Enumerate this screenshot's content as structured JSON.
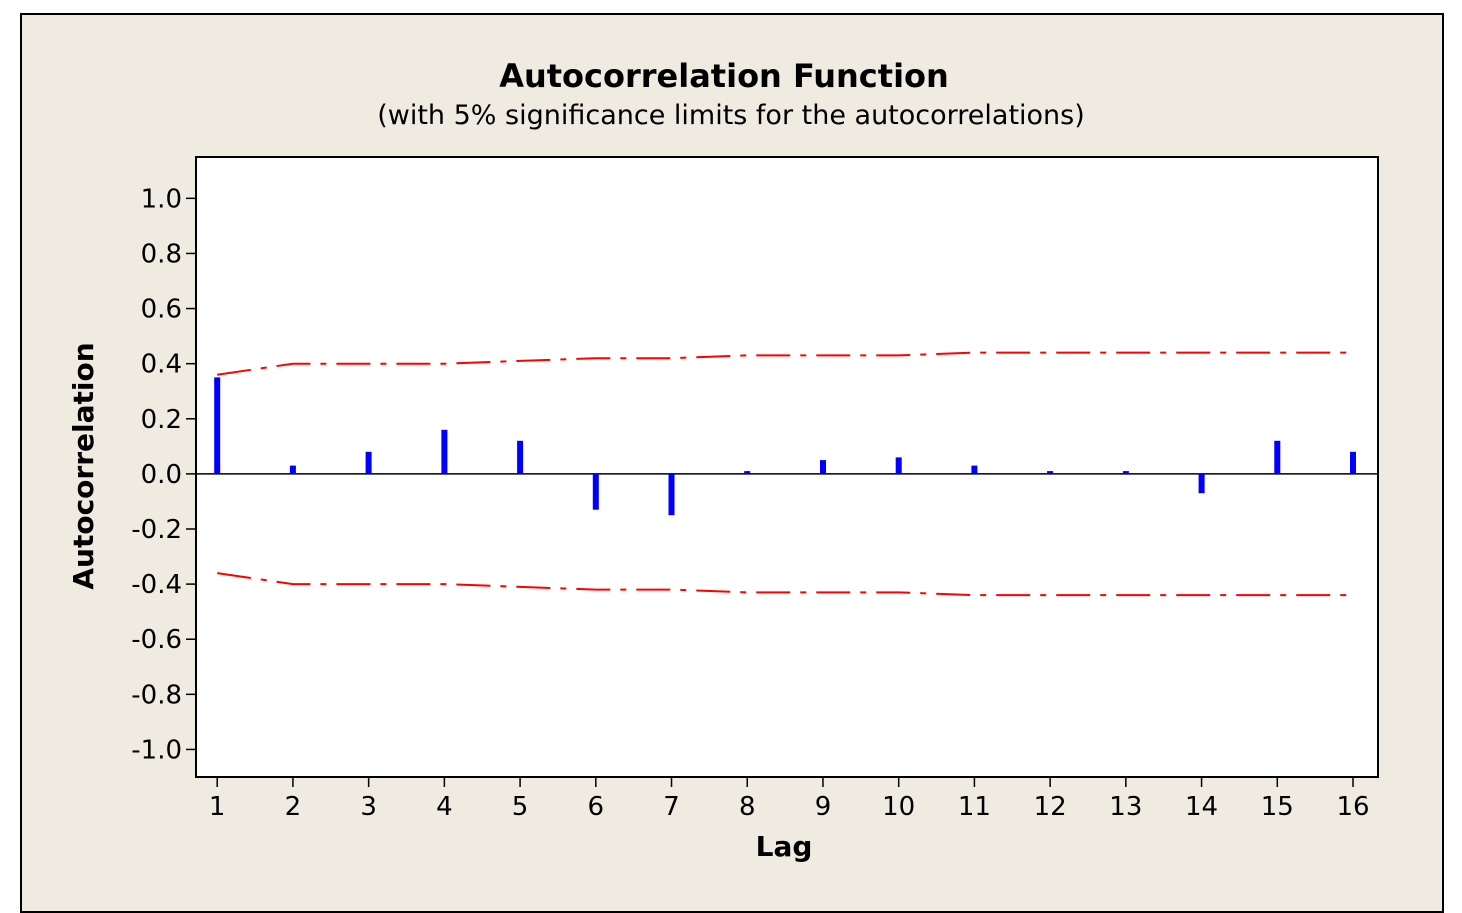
{
  "chart_data": {
    "type": "bar",
    "title": "Autocorrelation Function",
    "subtitle": "(with 5% significance limits for the autocorrelations)",
    "xlabel": "Lag",
    "ylabel": "Autocorrelation",
    "x": [
      1,
      2,
      3,
      4,
      5,
      6,
      7,
      8,
      9,
      10,
      11,
      12,
      13,
      14,
      15,
      16
    ],
    "x_tick_labels": [
      "1",
      "2",
      "3",
      "4",
      "5",
      "6",
      "7",
      "8",
      "9",
      "10",
      "11",
      "12",
      "13",
      "14",
      "15",
      "16"
    ],
    "values": [
      0.35,
      0.03,
      0.08,
      0.16,
      0.12,
      -0.13,
      -0.15,
      0.01,
      0.05,
      0.06,
      0.03,
      0.01,
      0.01,
      -0.07,
      0.12,
      0.08
    ],
    "significance_limits": {
      "upper": [
        0.36,
        0.4,
        0.4,
        0.4,
        0.41,
        0.42,
        0.42,
        0.43,
        0.43,
        0.43,
        0.44,
        0.44,
        0.44,
        0.44,
        0.44,
        0.44
      ],
      "lower": [
        -0.36,
        -0.4,
        -0.4,
        -0.4,
        -0.41,
        -0.42,
        -0.42,
        -0.43,
        -0.43,
        -0.43,
        -0.44,
        -0.44,
        -0.44,
        -0.44,
        -0.44,
        -0.44
      ]
    },
    "ylim": [
      -1.1,
      1.15
    ],
    "xlim": [
      0.72,
      16.33
    ],
    "y_ticks": [
      1.0,
      0.8,
      0.6,
      0.4,
      0.2,
      0.0,
      -0.2,
      -0.4,
      -0.6,
      -0.8,
      -1.0
    ],
    "y_tick_labels": [
      "1.0",
      "0.8",
      "0.6",
      "0.4",
      "0.2",
      "0.0",
      "-0.2",
      "-0.4",
      "-0.6",
      "-0.8",
      "-1.0"
    ],
    "grid": false,
    "colors": {
      "bars": "#0000ff",
      "limits": "#ff0000",
      "zero_line": "#000000",
      "background": "#efebe1",
      "plot_area": "#ffffff"
    }
  }
}
